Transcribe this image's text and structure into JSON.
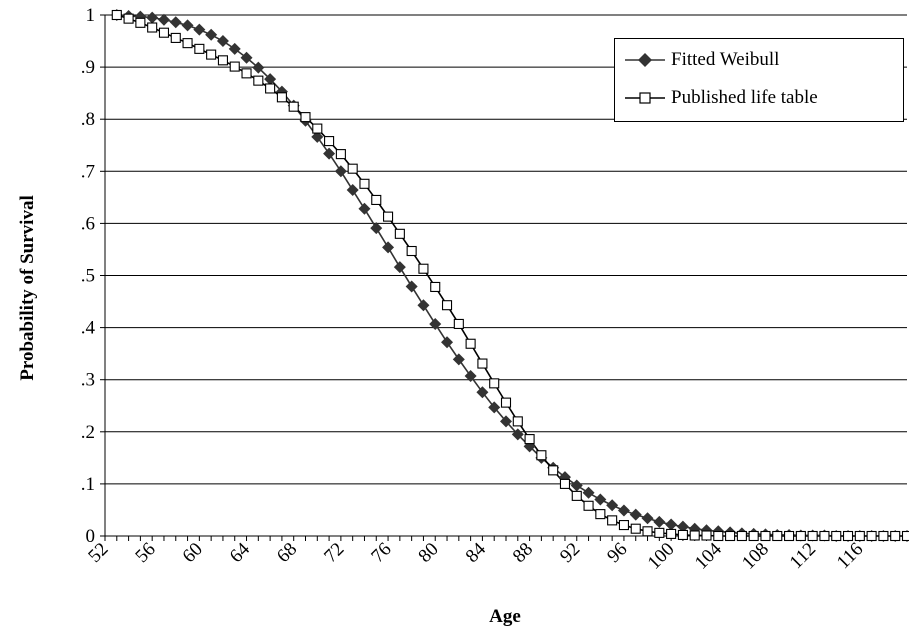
{
  "chart_data": {
    "type": "line",
    "title": "",
    "xlabel": "Age",
    "ylabel": "Probability of Survival",
    "xlim": [
      52,
      120
    ],
    "ylim": [
      0,
      1
    ],
    "x_ticks": [
      "52",
      "56",
      "60",
      "64",
      "68",
      "72",
      "76",
      "80",
      "84",
      "88",
      "92",
      "96",
      "100",
      "104",
      "108",
      "112",
      "116"
    ],
    "y_ticks": [
      "0",
      ".1",
      ".2",
      ".3",
      ".4",
      ".5",
      ".6",
      ".7",
      ".8",
      ".9",
      "1"
    ],
    "grid": "horizontal",
    "legend_position": "top-right",
    "x": [
      53,
      54,
      55,
      56,
      57,
      58,
      59,
      60,
      61,
      62,
      63,
      64,
      65,
      66,
      67,
      68,
      69,
      70,
      71,
      72,
      73,
      74,
      75,
      76,
      77,
      78,
      79,
      80,
      81,
      82,
      83,
      84,
      85,
      86,
      87,
      88,
      89,
      90,
      91,
      92,
      93,
      94,
      95,
      96,
      97,
      98,
      99,
      100,
      101,
      102,
      103,
      104,
      105,
      106,
      107,
      108,
      109,
      110,
      111,
      112,
      113,
      114,
      115,
      116,
      117,
      118,
      119,
      120
    ],
    "series": [
      {
        "name": "Fitted Weibull",
        "marker": "diamond-filled",
        "color": "#333333",
        "values": [
          1.0,
          0.998,
          0.997,
          0.995,
          0.991,
          0.986,
          0.98,
          0.972,
          0.962,
          0.95,
          0.935,
          0.918,
          0.899,
          0.877,
          0.853,
          0.826,
          0.797,
          0.766,
          0.734,
          0.7,
          0.664,
          0.628,
          0.591,
          0.554,
          0.516,
          0.479,
          0.443,
          0.407,
          0.372,
          0.339,
          0.307,
          0.276,
          0.247,
          0.22,
          0.195,
          0.172,
          0.15,
          0.131,
          0.113,
          0.097,
          0.083,
          0.07,
          0.059,
          0.049,
          0.041,
          0.034,
          0.027,
          0.022,
          0.018,
          0.014,
          0.011,
          0.009,
          0.007,
          0.005,
          0.004,
          0.003,
          0.002,
          0.002,
          0.001,
          0.001,
          0.001,
          0.0,
          0.0,
          0.0,
          0.0,
          0.0,
          0.0,
          0.0
        ]
      },
      {
        "name": "Published life table",
        "marker": "square-open",
        "color": "#000000",
        "values": [
          1.0,
          0.993,
          0.985,
          0.976,
          0.966,
          0.956,
          0.946,
          0.935,
          0.924,
          0.913,
          0.901,
          0.888,
          0.874,
          0.859,
          0.842,
          0.824,
          0.804,
          0.782,
          0.758,
          0.733,
          0.705,
          0.676,
          0.645,
          0.613,
          0.58,
          0.547,
          0.513,
          0.478,
          0.443,
          0.407,
          0.369,
          0.331,
          0.293,
          0.256,
          0.22,
          0.186,
          0.155,
          0.126,
          0.1,
          0.077,
          0.058,
          0.042,
          0.03,
          0.021,
          0.014,
          0.009,
          0.006,
          0.004,
          0.002,
          0.001,
          0.001,
          0.0,
          0.0,
          0.0,
          0.0,
          0.0,
          0.0,
          0.0,
          0.0,
          0.0,
          0.0,
          0.0,
          0.0,
          0.0,
          0.0,
          0.0,
          0.0,
          0.0
        ]
      }
    ]
  }
}
